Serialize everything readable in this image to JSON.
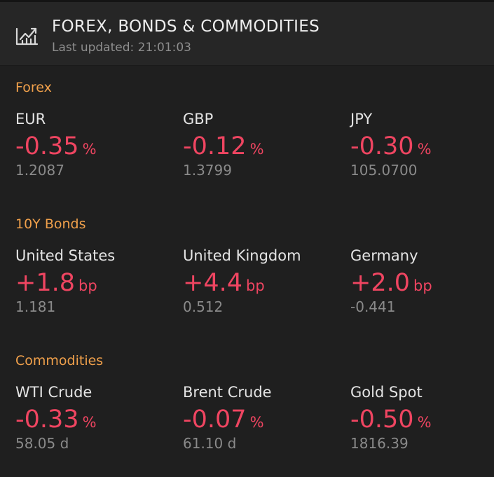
{
  "header": {
    "title": "FOREX, BONDS & COMMODITIES",
    "last_updated": "Last updated: 21:01:03",
    "icon": "chart-trend-icon"
  },
  "colors": {
    "section": "#f0a04b",
    "negative": "#ef4561",
    "positive": "#ef4561",
    "muted": "#8a8a8a"
  },
  "sections": [
    {
      "label": "Forex",
      "items": [
        {
          "name": "EUR",
          "change": "-0.35",
          "unit": "%",
          "value": "1.2087"
        },
        {
          "name": "GBP",
          "change": "-0.12",
          "unit": "%",
          "value": "1.3799"
        },
        {
          "name": "JPY",
          "change": "-0.30",
          "unit": "%",
          "value": "105.0700"
        }
      ]
    },
    {
      "label": "10Y Bonds",
      "items": [
        {
          "name": "United States",
          "change": "+1.8",
          "unit": "bp",
          "value": "1.181"
        },
        {
          "name": "United Kingdom",
          "change": "+4.4",
          "unit": "bp",
          "value": "0.512"
        },
        {
          "name": "Germany",
          "change": "+2.0",
          "unit": "bp",
          "value": "-0.441"
        }
      ]
    },
    {
      "label": "Commodities",
      "items": [
        {
          "name": "WTI Crude",
          "change": "-0.33",
          "unit": "%",
          "value": "58.05 d"
        },
        {
          "name": "Brent Crude",
          "change": "-0.07",
          "unit": "%",
          "value": "61.10 d"
        },
        {
          "name": "Gold Spot",
          "change": "-0.50",
          "unit": "%",
          "value": "1816.39"
        }
      ]
    }
  ]
}
